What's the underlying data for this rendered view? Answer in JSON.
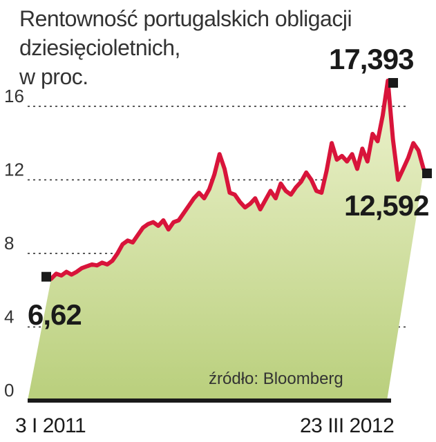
{
  "chart_data": {
    "type": "area",
    "title_lines": [
      "Rentowność portugalskich obligacji",
      "dziesięcioletnich,",
      "w proc."
    ],
    "yticks": [
      0,
      4,
      8,
      12,
      16
    ],
    "ytick_labels": [
      "0",
      "4",
      "8",
      "12",
      "16"
    ],
    "ylim": [
      0,
      17.8
    ],
    "grid": "dotted horizontal at 4, 8, 12, 16",
    "x_start_label": "3 I 2011",
    "x_end_label": "23 III 2012",
    "source": "źródło: Bloomberg",
    "series": [
      {
        "values": [
          6.62,
          6.9,
          6.8,
          7.0,
          6.85,
          7.0,
          7.2,
          7.3,
          7.4,
          7.35,
          7.5,
          7.4,
          7.6,
          8.0,
          8.5,
          8.7,
          8.6,
          9.0,
          9.4,
          9.6,
          9.7,
          9.5,
          9.8,
          9.3,
          9.7,
          9.8,
          10.2,
          10.6,
          11.0,
          11.3,
          11.0,
          11.5,
          12.3,
          13.4,
          12.6,
          11.3,
          11.2,
          10.8,
          10.5,
          10.7,
          11.0,
          10.4,
          10.9,
          11.4,
          11.0,
          11.8,
          11.4,
          11.2,
          11.6,
          11.9,
          12.4,
          12.0,
          11.4,
          11.3,
          12.5,
          14.0,
          13.1,
          13.3,
          13.0,
          13.4,
          12.6,
          13.7,
          13.0,
          14.5,
          14.1,
          15.5,
          17.393,
          14.2,
          12.0,
          12.6,
          13.2,
          14.0,
          13.6,
          12.592
        ],
        "color": "#d8143a"
      }
    ],
    "callouts": [
      {
        "label": "6,62",
        "value": 6.62,
        "point": "first"
      },
      {
        "label": "17,393",
        "value": 17.393,
        "point": "max"
      },
      {
        "label": "12,592",
        "value": 12.592,
        "point": "last"
      }
    ],
    "fill_gradient": [
      "#eef3cf",
      "#b9cf7c"
    ]
  }
}
